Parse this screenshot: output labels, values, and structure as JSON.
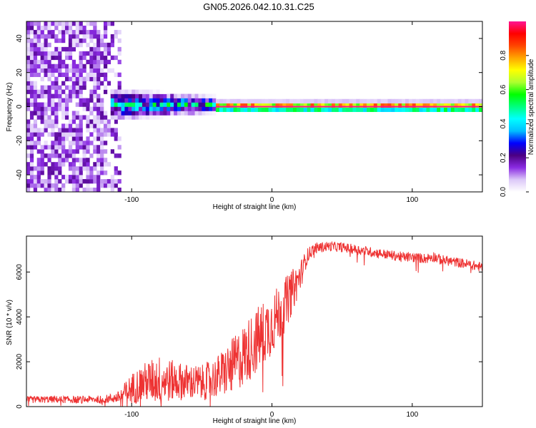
{
  "title": "GN05.2026.042.10.31.C25",
  "chart_data": [
    {
      "type": "heatmap",
      "name": "spectrogram",
      "xlabel": "Height of straight line (km)",
      "ylabel": "Frequency (Hz)",
      "xlim": [
        -175,
        150
      ],
      "ylim": [
        -50,
        50
      ],
      "xticks": [
        -100,
        0,
        100
      ],
      "yticks": [
        -40,
        -20,
        0,
        20,
        40
      ],
      "regions": [
        {
          "label": "broadband noise",
          "x_from": -175,
          "x_to": -108,
          "freq_min": -50,
          "freq_max": 50,
          "amplitude": 0.2
        },
        {
          "label": "diffuse signal",
          "x_from": -115,
          "x_to": -40,
          "freq_min": -10,
          "freq_max": 10,
          "amplitude": 0.45
        },
        {
          "label": "narrow carrier",
          "x_from": -40,
          "x_to": 150,
          "freq_min": -3,
          "freq_max": 3,
          "amplitude": 1.0
        }
      ],
      "colorbar": {
        "label": "Normalized spectral amplitude",
        "ticks": [
          0.0,
          0.2,
          0.4,
          0.6,
          0.8
        ],
        "range": [
          0,
          1
        ],
        "stops": [
          "#ffffff",
          "#dcc8f8",
          "#8a2be2",
          "#4b0082",
          "#0000ff",
          "#00bfff",
          "#00ffff",
          "#00ff7f",
          "#00ff00",
          "#adff2f",
          "#ffff00",
          "#ffa500",
          "#ff4500",
          "#ff0000",
          "#ff1493"
        ]
      }
    },
    {
      "type": "line",
      "name": "snr",
      "xlabel": "Height of straight line (km)",
      "ylabel": "SNR (10 * v/v)",
      "xlim": [
        -175,
        150
      ],
      "ylim": [
        0,
        7600
      ],
      "xticks": [
        -100,
        0,
        100
      ],
      "yticks": [
        0,
        2000,
        4000,
        6000
      ],
      "color": "#ee3333",
      "x": [
        -175,
        -160,
        -140,
        -120,
        -110,
        -100,
        -90,
        -80,
        -70,
        -60,
        -50,
        -40,
        -30,
        -20,
        -10,
        0,
        10,
        20,
        25,
        30,
        40,
        50,
        60,
        70,
        80,
        90,
        100,
        110,
        115,
        120,
        130,
        140,
        150
      ],
      "y": [
        300,
        320,
        310,
        330,
        400,
        800,
        1100,
        1200,
        1150,
        1100,
        1050,
        1300,
        1700,
        2300,
        3000,
        3700,
        4600,
        5800,
        6700,
        7050,
        7150,
        7100,
        7000,
        6900,
        6800,
        6700,
        6650,
        6600,
        6700,
        6550,
        6450,
        6350,
        6200
      ],
      "spread": [
        150,
        160,
        160,
        170,
        250,
        700,
        900,
        1100,
        900,
        800,
        800,
        900,
        1200,
        1400,
        1500,
        1400,
        1200,
        700,
        350,
        250,
        220,
        220,
        220,
        220,
        220,
        220,
        220,
        230,
        250,
        230,
        220,
        220,
        220
      ]
    }
  ]
}
